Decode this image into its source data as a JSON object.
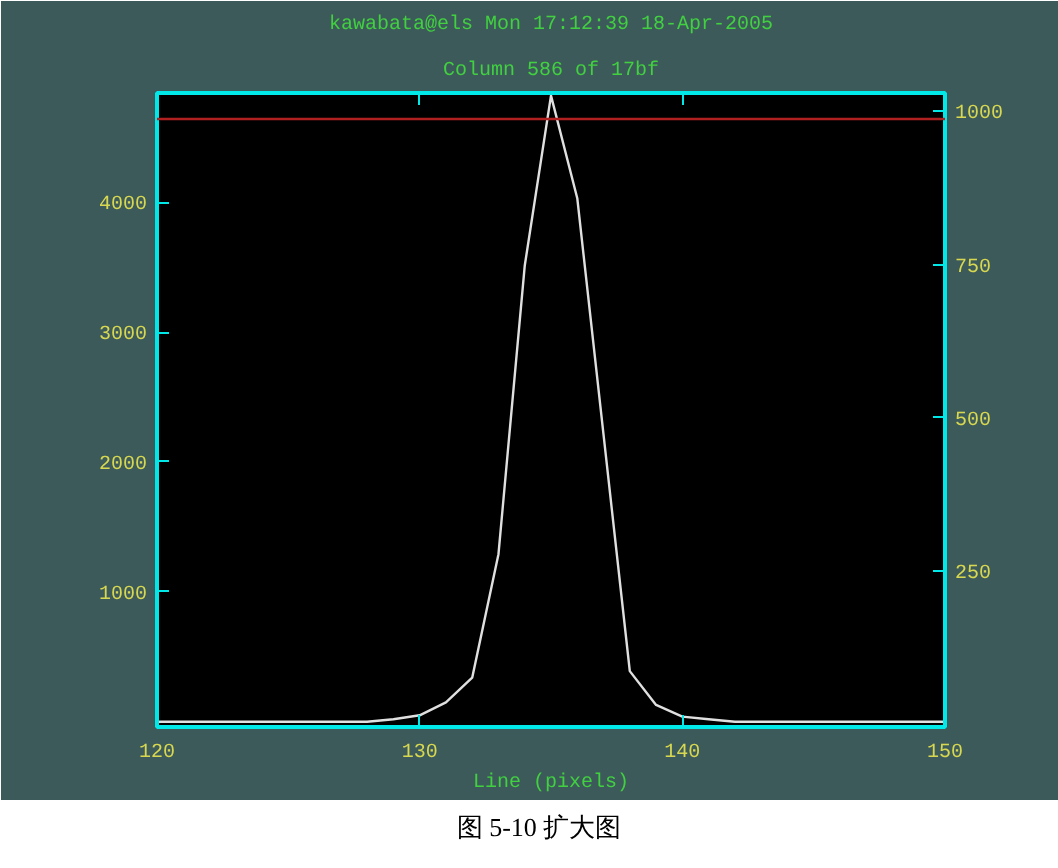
{
  "chart_data": {
    "type": "line",
    "title": "kawabata@els Mon 17:12:39 18-Apr-2005",
    "subtitle": "Column 586 of 17bf",
    "xlabel": "Line (pixels)",
    "x": [
      120,
      121,
      122,
      123,
      124,
      125,
      126,
      127,
      128,
      129,
      130,
      131,
      132,
      133,
      134,
      135,
      136,
      137,
      138,
      139,
      140,
      141,
      142,
      143,
      144,
      145,
      146,
      147,
      148,
      149,
      150
    ],
    "series": [
      {
        "color": "#e0e0e0",
        "values": [
          0,
          0,
          0,
          0,
          0,
          0,
          0,
          0,
          0,
          20,
          50,
          150,
          340,
          1290,
          3510,
          4820,
          4030,
          2210,
          390,
          130,
          40,
          20,
          0,
          0,
          0,
          0,
          0,
          0,
          0,
          0,
          0
        ]
      }
    ],
    "xlim": [
      120,
      150
    ],
    "xticks": [
      120,
      130,
      140,
      150
    ],
    "ylim": [
      -40,
      4840
    ],
    "yticks": [
      1000,
      2000,
      3000,
      4000
    ],
    "y2lim": [
      -5,
      1030
    ],
    "y2ticks": [
      250,
      500,
      750,
      1000
    ],
    "ref_lines": [
      {
        "axis": "y",
        "value": 4640,
        "color": "#b02020"
      }
    ],
    "annotations": [
      "图 5-10 扩大图"
    ],
    "grid": false,
    "marker": "none",
    "line_style": "solid"
  }
}
